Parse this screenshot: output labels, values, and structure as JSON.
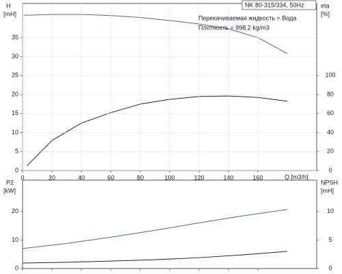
{
  "chart_data": [
    {
      "type": "line",
      "title": "NK 80-315/334, 50Hz",
      "annotations": [
        "Перекачиваемая жидкость = Вода",
        "Плотность = 998.2 kg/m3"
      ],
      "xlabel": "Q [m3/h]",
      "ylabel": "H",
      "yunit": "[mH]",
      "y2label": "eta",
      "y2unit": "[%]",
      "xlim": [
        0,
        200
      ],
      "xticks": [
        0,
        20,
        40,
        60,
        80,
        100,
        120,
        140,
        160
      ],
      "ylim": [
        0,
        44
      ],
      "yticks": [
        0,
        5,
        10,
        15,
        20,
        25,
        30,
        35
      ],
      "y2lim": [
        0,
        176
      ],
      "y2ticks": [
        0,
        20,
        40,
        60,
        80,
        100
      ],
      "grid": true,
      "series": [
        {
          "color": "#4a6a9a",
          "x": [
            1,
            20,
            40,
            60,
            80,
            100,
            120,
            140,
            160,
            180
          ],
          "values": [
            40.9,
            41.1,
            41.1,
            40.8,
            40.3,
            39.5,
            38.6,
            37.3,
            35,
            30.8
          ]
        },
        {
          "color": "#222222",
          "axis": "y2",
          "x": [
            3,
            20,
            40,
            60,
            80,
            100,
            120,
            140,
            160,
            180
          ],
          "values": [
            5,
            31.7,
            50,
            61,
            70,
            75,
            78,
            78.5,
            77,
            73
          ]
        }
      ]
    },
    {
      "type": "line",
      "ylabel": "P2",
      "yunit": "[kW]",
      "y2label": "NPSH",
      "y2unit": "[mH]",
      "xlim": [
        0,
        200
      ],
      "ylim": [
        0,
        31
      ],
      "yticks": [
        0,
        10,
        20
      ],
      "y2lim": [
        0,
        15.5
      ],
      "y2ticks": [
        0,
        5,
        10
      ],
      "series": [
        {
          "color": "#4a6a9a",
          "x": [
            0,
            30,
            60,
            90,
            120,
            150,
            180
          ],
          "values": [
            7,
            8.8,
            11,
            13.4,
            16,
            18.5,
            20.7
          ]
        },
        {
          "color": "#222222",
          "axis": "y2",
          "x": [
            0,
            30,
            60,
            90,
            120,
            150,
            180
          ],
          "values": [
            0.96,
            1.1,
            1.3,
            1.55,
            1.9,
            2.4,
            3.0
          ]
        }
      ]
    }
  ]
}
